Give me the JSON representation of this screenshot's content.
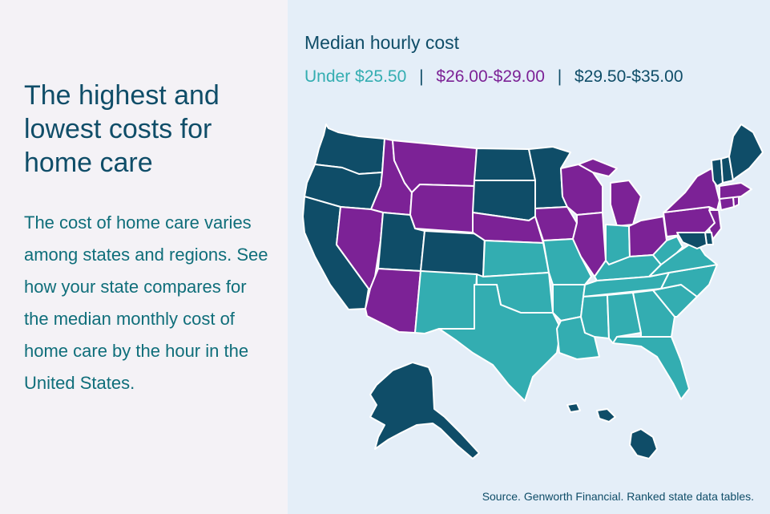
{
  "headline": "The highest and lowest costs for home care",
  "body": "The cost of home care varies among states and regions. See how your state compares for the median monthly cost of home care by the hour in the United States.",
  "legend": {
    "title": "Median hourly cost",
    "tiers": [
      {
        "label": "Under $25.50",
        "color": "#33adb1"
      },
      {
        "label": "$26.00-$29.00",
        "color": "#7c2296"
      },
      {
        "label": "$29.50-$35.00",
        "color": "#0f4d68"
      }
    ],
    "separator": "|"
  },
  "source": "Source. Genworth Financial. Ranked state data tables.",
  "colors": {
    "low": "#33adb1",
    "mid": "#7c2296",
    "high": "#0f4d68",
    "background": "#e4eef8",
    "panel": "#f4f2f6"
  },
  "map_data": {
    "states": [
      {
        "name": "Washington",
        "tier": "high"
      },
      {
        "name": "Oregon",
        "tier": "high"
      },
      {
        "name": "California",
        "tier": "high"
      },
      {
        "name": "Idaho",
        "tier": "mid"
      },
      {
        "name": "Nevada",
        "tier": "mid"
      },
      {
        "name": "Montana",
        "tier": "mid"
      },
      {
        "name": "Wyoming",
        "tier": "mid"
      },
      {
        "name": "Utah",
        "tier": "high"
      },
      {
        "name": "Arizona",
        "tier": "mid"
      },
      {
        "name": "Colorado",
        "tier": "high"
      },
      {
        "name": "New Mexico",
        "tier": "low"
      },
      {
        "name": "North Dakota",
        "tier": "high"
      },
      {
        "name": "South Dakota",
        "tier": "high"
      },
      {
        "name": "Nebraska",
        "tier": "mid"
      },
      {
        "name": "Kansas",
        "tier": "low"
      },
      {
        "name": "Oklahoma",
        "tier": "low"
      },
      {
        "name": "Texas",
        "tier": "low"
      },
      {
        "name": "Minnesota",
        "tier": "high"
      },
      {
        "name": "Iowa",
        "tier": "mid"
      },
      {
        "name": "Missouri",
        "tier": "low"
      },
      {
        "name": "Arkansas",
        "tier": "low"
      },
      {
        "name": "Louisiana",
        "tier": "low"
      },
      {
        "name": "Wisconsin",
        "tier": "mid"
      },
      {
        "name": "Illinois",
        "tier": "mid"
      },
      {
        "name": "Michigan",
        "tier": "mid"
      },
      {
        "name": "Indiana",
        "tier": "low"
      },
      {
        "name": "Ohio",
        "tier": "mid"
      },
      {
        "name": "Kentucky",
        "tier": "low"
      },
      {
        "name": "Tennessee",
        "tier": "low"
      },
      {
        "name": "Mississippi",
        "tier": "low"
      },
      {
        "name": "Alabama",
        "tier": "low"
      },
      {
        "name": "Georgia",
        "tier": "low"
      },
      {
        "name": "Florida",
        "tier": "low"
      },
      {
        "name": "South Carolina",
        "tier": "low"
      },
      {
        "name": "North Carolina",
        "tier": "low"
      },
      {
        "name": "Virginia",
        "tier": "low"
      },
      {
        "name": "West Virginia",
        "tier": "low"
      },
      {
        "name": "Pennsylvania",
        "tier": "mid"
      },
      {
        "name": "New York",
        "tier": "mid"
      },
      {
        "name": "New Jersey",
        "tier": "mid"
      },
      {
        "name": "Delaware",
        "tier": "high"
      },
      {
        "name": "Maryland",
        "tier": "high"
      },
      {
        "name": "Connecticut",
        "tier": "mid"
      },
      {
        "name": "Rhode Island",
        "tier": "mid"
      },
      {
        "name": "Massachusetts",
        "tier": "mid"
      },
      {
        "name": "Vermont",
        "tier": "high"
      },
      {
        "name": "New Hampshire",
        "tier": "high"
      },
      {
        "name": "Maine",
        "tier": "high"
      },
      {
        "name": "Alaska",
        "tier": "high"
      },
      {
        "name": "Hawaii",
        "tier": "high"
      }
    ]
  }
}
